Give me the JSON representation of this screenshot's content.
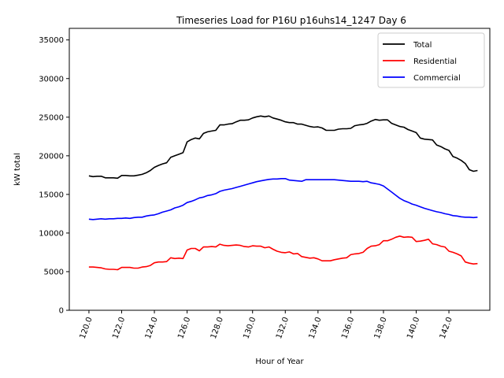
{
  "chart_data": {
    "type": "line",
    "title": "Timeseries Load for P16U p16uhs14_1247  Day 6",
    "xlabel": "Hour of Year",
    "ylabel": "kW total",
    "xlim": [
      118.8,
      144.5
    ],
    "ylim": [
      0,
      36500
    ],
    "xticks": [
      120.0,
      122.0,
      124.0,
      126.0,
      128.0,
      130.0,
      132.0,
      134.0,
      136.0,
      138.0,
      140.0,
      142.0
    ],
    "xtick_labels": [
      "120.0",
      "122.0",
      "124.0",
      "126.0",
      "128.0",
      "130.0",
      "132.0",
      "134.0",
      "136.0",
      "138.0",
      "140.0",
      "142.0"
    ],
    "yticks": [
      0,
      5000,
      10000,
      15000,
      20000,
      25000,
      30000,
      35000
    ],
    "ytick_labels": [
      "0",
      "5000",
      "10000",
      "15000",
      "20000",
      "25000",
      "30000",
      "35000"
    ],
    "grid": false,
    "legend_position": "top-right",
    "x": [
      120.0,
      120.25,
      120.5,
      120.75,
      121.0,
      121.25,
      121.5,
      121.75,
      122.0,
      122.25,
      122.5,
      122.75,
      123.0,
      123.25,
      123.5,
      123.75,
      124.0,
      124.25,
      124.5,
      124.75,
      125.0,
      125.25,
      125.5,
      125.75,
      126.0,
      126.25,
      126.5,
      126.75,
      127.0,
      127.25,
      127.5,
      127.75,
      128.0,
      128.25,
      128.5,
      128.75,
      129.0,
      129.25,
      129.5,
      129.75,
      130.0,
      130.25,
      130.5,
      130.75,
      131.0,
      131.25,
      131.5,
      131.75,
      132.0,
      132.25,
      132.5,
      132.75,
      133.0,
      133.25,
      133.5,
      133.75,
      134.0,
      134.25,
      134.5,
      134.75,
      135.0,
      135.25,
      135.5,
      135.75,
      136.0,
      136.25,
      136.5,
      136.75,
      137.0,
      137.25,
      137.5,
      137.75,
      138.0,
      138.25,
      138.5,
      138.75,
      139.0,
      139.25,
      139.5,
      139.75,
      140.0,
      140.25,
      140.5,
      140.75,
      141.0,
      141.25,
      141.5,
      141.75,
      142.0,
      142.25,
      142.5,
      142.75,
      143.0,
      143.25,
      143.5,
      143.75
    ],
    "series": [
      {
        "name": "Total",
        "color": "#000000",
        "values": [
          17400,
          17300,
          17350,
          17350,
          17150,
          17150,
          17150,
          17100,
          17450,
          17450,
          17400,
          17400,
          17500,
          17600,
          17800,
          18100,
          18500,
          18750,
          18950,
          19100,
          19800,
          20000,
          20200,
          20400,
          21800,
          22100,
          22300,
          22200,
          22900,
          23100,
          23200,
          23300,
          24000,
          24000,
          24100,
          24150,
          24400,
          24600,
          24600,
          24650,
          24900,
          25050,
          25150,
          25050,
          25150,
          24900,
          24750,
          24600,
          24400,
          24300,
          24300,
          24100,
          24100,
          23950,
          23800,
          23700,
          23750,
          23600,
          23300,
          23300,
          23300,
          23450,
          23500,
          23500,
          23550,
          23900,
          24000,
          24050,
          24200,
          24500,
          24700,
          24600,
          24650,
          24650,
          24200,
          24000,
          23800,
          23700,
          23400,
          23200,
          23000,
          22300,
          22150,
          22100,
          22050,
          21400,
          21200,
          20900,
          20700,
          19900,
          19700,
          19400,
          19000,
          18200,
          18000,
          18100
        ]
      },
      {
        "name": "Residential",
        "color": "#ff0000",
        "values": [
          5600,
          5600,
          5550,
          5500,
          5350,
          5300,
          5300,
          5250,
          5550,
          5550,
          5550,
          5450,
          5450,
          5600,
          5650,
          5800,
          6150,
          6250,
          6250,
          6300,
          6800,
          6700,
          6750,
          6700,
          7800,
          8000,
          8000,
          7700,
          8200,
          8200,
          8250,
          8200,
          8550,
          8400,
          8350,
          8400,
          8450,
          8400,
          8250,
          8200,
          8350,
          8300,
          8300,
          8100,
          8200,
          7900,
          7650,
          7500,
          7450,
          7550,
          7300,
          7350,
          6950,
          6850,
          6750,
          6800,
          6650,
          6400,
          6400,
          6400,
          6550,
          6650,
          6750,
          6800,
          7200,
          7300,
          7350,
          7500,
          8000,
          8300,
          8350,
          8500,
          9000,
          9000,
          9200,
          9450,
          9600,
          9450,
          9500,
          9450,
          8900,
          8950,
          9050,
          9200,
          8600,
          8500,
          8300,
          8200,
          7650,
          7500,
          7300,
          7050,
          6250,
          6100,
          6000,
          6050
        ]
      },
      {
        "name": "Commercial",
        "color": "#0000ff",
        "values": [
          11800,
          11750,
          11800,
          11850,
          11800,
          11850,
          11850,
          11900,
          11900,
          11950,
          11900,
          12000,
          12050,
          12050,
          12200,
          12300,
          12350,
          12500,
          12700,
          12850,
          13000,
          13250,
          13400,
          13600,
          13950,
          14100,
          14300,
          14550,
          14650,
          14850,
          14950,
          15100,
          15400,
          15550,
          15650,
          15750,
          15900,
          16050,
          16200,
          16350,
          16500,
          16650,
          16750,
          16850,
          16950,
          17000,
          17000,
          17050,
          17050,
          16850,
          16800,
          16750,
          16700,
          16900,
          16900,
          16900,
          16900,
          16900,
          16900,
          16900,
          16900,
          16850,
          16800,
          16750,
          16700,
          16700,
          16700,
          16650,
          16700,
          16500,
          16400,
          16300,
          16100,
          15700,
          15300,
          14900,
          14500,
          14200,
          14000,
          13750,
          13600,
          13400,
          13200,
          13050,
          12900,
          12750,
          12650,
          12500,
          12400,
          12250,
          12200,
          12100,
          12050,
          12050,
          12000,
          12050
        ]
      }
    ]
  }
}
